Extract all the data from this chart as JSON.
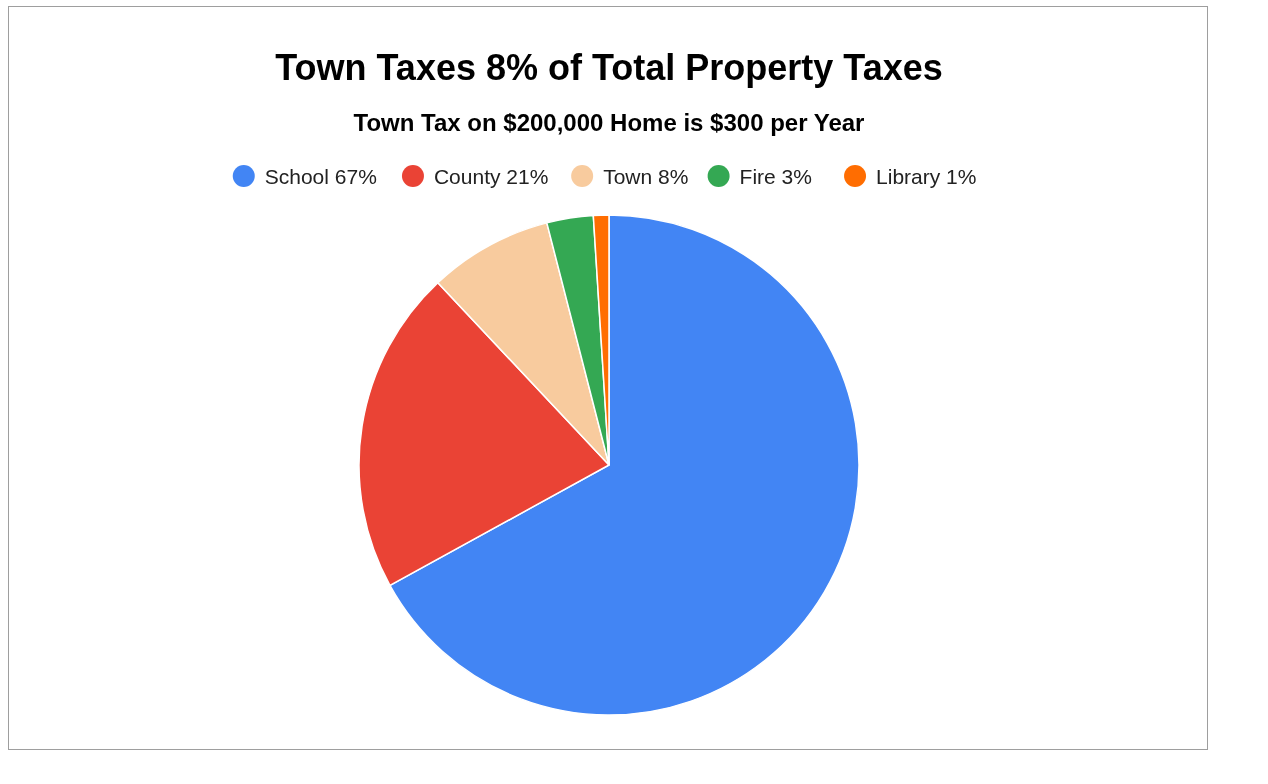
{
  "chart_data": {
    "type": "pie",
    "title": "Town Taxes 8% of Total Property Taxes",
    "subtitle": "Town Tax on $200,000 Home is $300 per Year",
    "categories": [
      "School 67%",
      "County 21%",
      "Town 8%",
      "Fire 3%",
      "Library 1%"
    ],
    "values": [
      67,
      21,
      8,
      3,
      1
    ],
    "colors": [
      "#4285f4",
      "#ea4335",
      "#f8cb9e",
      "#34a853",
      "#ff6d01"
    ],
    "legend": "top"
  }
}
